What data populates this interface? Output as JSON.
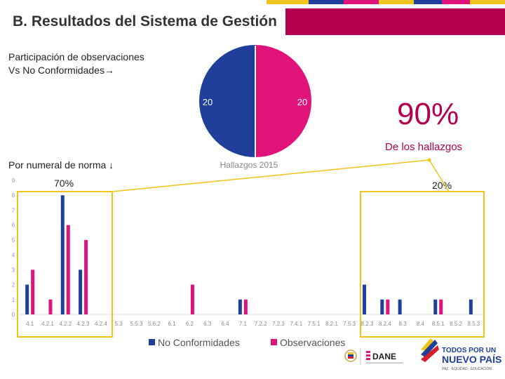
{
  "header": {
    "title": "B. Resultados del Sistema de Gestión"
  },
  "annotations": {
    "participation_line1": "Participación de observaciones",
    "participation_line2": "Vs No Conformidades→",
    "big_percent": "90%",
    "findings_label": "De los hallazgos",
    "numeral_label": "Por  numeral de norma ↓",
    "left_pct": "70%",
    "right_pct": "20%"
  },
  "colors": {
    "accent": "#b4004e",
    "series_nc": "#1f3f9a",
    "series_obs": "#e0137b",
    "highlight": "#f0c419",
    "big_text": "#b4004e"
  },
  "logos": {
    "dane": "DANE",
    "gov_line1": "TODOS POR UN",
    "gov_line2": "NUEVO PAÍS",
    "gov_line3": "PAZ · EQUIDAD · EDUCACIÓN"
  },
  "chart_data": [
    {
      "type": "pie",
      "title": "Hallazgos 2015",
      "slices": [
        {
          "name": "No Conformidades",
          "value": 20
        },
        {
          "name": "Observaciones",
          "value": 20
        }
      ]
    },
    {
      "type": "bar",
      "categories": [
        "4.1",
        "4.2.1",
        "4.2.2",
        "4.2.3",
        "4.2.4",
        "5.3",
        "5.5.3",
        "5.6.2",
        "6.1",
        "6.2",
        "6.3",
        "6.4",
        "7.1",
        "7.2.2",
        "7.2.3",
        "7.4.1",
        "7.5.1",
        "8.2.1",
        "7.5.3",
        "8.2.3",
        "8.2.4",
        "8.3",
        "8.4",
        "8.5.1",
        "8.5.2",
        "8.5.3"
      ],
      "series": [
        {
          "name": "No Conformidades",
          "values": [
            2,
            0,
            8,
            3,
            0,
            0,
            0,
            0,
            0,
            0,
            0,
            0,
            1,
            0,
            0,
            0,
            0,
            0,
            0,
            2,
            1,
            1,
            0,
            1,
            0,
            1
          ]
        },
        {
          "name": "Observaciones",
          "values": [
            3,
            1,
            6,
            5,
            0,
            0,
            0,
            0,
            0,
            2,
            0,
            0,
            1,
            0,
            0,
            0,
            0,
            0,
            0,
            0,
            1,
            0,
            0,
            1,
            0,
            0
          ]
        }
      ],
      "yticks": [
        0,
        1,
        2,
        3,
        4,
        5,
        6,
        7,
        8,
        9
      ],
      "ylim": [
        0,
        9
      ],
      "legend": [
        "No Conformidades",
        "Observaciones"
      ]
    }
  ]
}
